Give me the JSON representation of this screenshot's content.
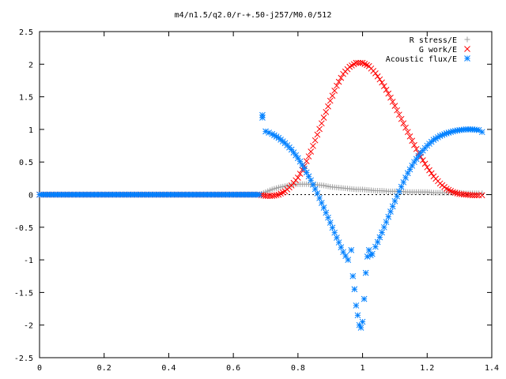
{
  "chart_data": {
    "type": "scatter",
    "title": "m4/n1.5/q2.0/r-+.50-j257/M0.0/512",
    "xlabel": "",
    "ylabel": "",
    "xlim": [
      0,
      1.4
    ],
    "ylim": [
      -2.5,
      2.5
    ],
    "x_ticks": [
      "0",
      "0.2",
      "0.4",
      "0.6",
      "0.8",
      "1",
      "1.2",
      "1.4"
    ],
    "y_ticks": [
      "2.5",
      "2",
      "1.5",
      "1",
      "0.5",
      "0",
      "-0.5",
      "-1",
      "-1.5",
      "-2",
      "-2.5"
    ],
    "grid": false,
    "legend_position": "top-right",
    "series": [
      {
        "name": "R stress/E",
        "color": "#a0a0a0",
        "marker": "plus",
        "x": [
          0.0,
          0.1,
          0.2,
          0.3,
          0.4,
          0.5,
          0.6,
          0.68,
          0.7,
          0.72,
          0.74,
          0.76,
          0.78,
          0.8,
          0.82,
          0.84,
          0.86,
          0.88,
          0.9,
          0.92,
          0.94,
          0.96,
          0.98,
          1.0,
          1.02,
          1.04,
          1.06,
          1.08,
          1.1,
          1.12,
          1.14,
          1.16,
          1.18,
          1.2,
          1.22,
          1.24,
          1.26,
          1.28,
          1.3,
          1.32,
          1.34,
          1.36,
          1.37
        ],
        "y": [
          0,
          0,
          0,
          0,
          0,
          0,
          0,
          0,
          0.04,
          0.08,
          0.11,
          0.13,
          0.15,
          0.16,
          0.16,
          0.16,
          0.15,
          0.14,
          0.12,
          0.11,
          0.1,
          0.09,
          0.08,
          0.08,
          0.07,
          0.06,
          0.06,
          0.05,
          0.05,
          0.05,
          0.04,
          0.04,
          0.04,
          0.04,
          0.03,
          0.03,
          0.03,
          0.03,
          0.03,
          0.02,
          0.02,
          0.02,
          0.02
        ]
      },
      {
        "name": "G work/E",
        "color": "#ff0000",
        "marker": "cross",
        "x": [
          0.0,
          0.1,
          0.2,
          0.3,
          0.4,
          0.5,
          0.6,
          0.68,
          0.7,
          0.72,
          0.74,
          0.76,
          0.78,
          0.8,
          0.82,
          0.84,
          0.86,
          0.88,
          0.9,
          0.92,
          0.94,
          0.96,
          0.98,
          1.0,
          1.02,
          1.04,
          1.06,
          1.08,
          1.1,
          1.12,
          1.14,
          1.16,
          1.18,
          1.2,
          1.22,
          1.24,
          1.26,
          1.28,
          1.3,
          1.32,
          1.34,
          1.36,
          1.37
        ],
        "y": [
          0,
          0,
          0,
          0,
          0,
          0,
          0,
          0,
          -0.02,
          -0.02,
          0.0,
          0.05,
          0.14,
          0.26,
          0.44,
          0.66,
          0.92,
          1.18,
          1.44,
          1.67,
          1.85,
          1.96,
          2.02,
          2.02,
          1.97,
          1.86,
          1.72,
          1.55,
          1.36,
          1.16,
          0.96,
          0.76,
          0.58,
          0.42,
          0.28,
          0.17,
          0.09,
          0.04,
          0.01,
          0.0,
          -0.01,
          -0.01,
          -0.01
        ]
      },
      {
        "name": "Acoustic flux/E",
        "color": "#0080ff",
        "marker": "star",
        "x": [
          0.0,
          0.1,
          0.2,
          0.3,
          0.4,
          0.5,
          0.6,
          0.68,
          0.69,
          0.69,
          0.7,
          0.71,
          0.72,
          0.74,
          0.76,
          0.78,
          0.8,
          0.82,
          0.84,
          0.86,
          0.88,
          0.9,
          0.92,
          0.94,
          0.955,
          0.965,
          0.97,
          0.975,
          0.98,
          0.985,
          0.99,
          0.995,
          1.0,
          1.005,
          1.01,
          1.015,
          1.02,
          1.025,
          1.03,
          1.04,
          1.06,
          1.08,
          1.1,
          1.12,
          1.14,
          1.16,
          1.18,
          1.2,
          1.22,
          1.24,
          1.26,
          1.28,
          1.3,
          1.32,
          1.34,
          1.36,
          1.37
        ],
        "y": [
          0,
          0,
          0,
          0,
          0,
          0,
          0,
          0,
          1.18,
          1.22,
          0.97,
          0.95,
          0.93,
          0.87,
          0.79,
          0.69,
          0.56,
          0.4,
          0.22,
          0.02,
          -0.2,
          -0.43,
          -0.66,
          -0.88,
          -1.0,
          -0.85,
          -1.25,
          -1.45,
          -1.7,
          -1.85,
          -2.0,
          -2.04,
          -1.95,
          -1.6,
          -1.2,
          -0.95,
          -0.85,
          -0.93,
          -0.91,
          -0.8,
          -0.58,
          -0.34,
          -0.1,
          0.12,
          0.33,
          0.5,
          0.64,
          0.75,
          0.84,
          0.9,
          0.94,
          0.97,
          0.99,
          1.0,
          1.0,
          0.99,
          0.96
        ]
      }
    ]
  }
}
